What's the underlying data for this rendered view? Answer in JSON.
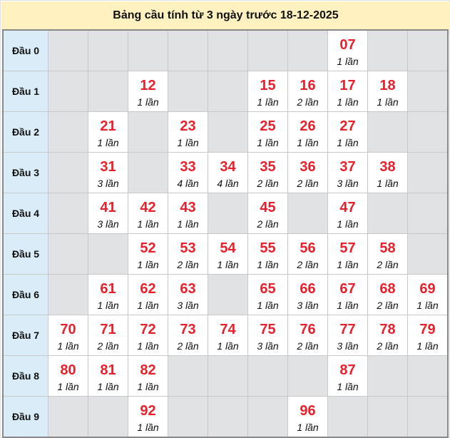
{
  "title": "Bảng cầu tính từ 3 ngày trước 18-12-2025",
  "count_suffix": "lần",
  "colors": {
    "number": "#e8202c",
    "header_bg": "#fff2c0",
    "row_label_bg": "#d9ecf7",
    "empty_cell": "#e1e2e4"
  },
  "rows": [
    {
      "label": "Đầu 0",
      "cells": [
        null,
        null,
        null,
        null,
        null,
        null,
        null,
        {
          "num": "07",
          "count": "1 lần"
        },
        null,
        null
      ]
    },
    {
      "label": "Đầu 1",
      "cells": [
        null,
        null,
        {
          "num": "12",
          "count": "1 lần"
        },
        null,
        null,
        {
          "num": "15",
          "count": "1 lần"
        },
        {
          "num": "16",
          "count": "2 lần"
        },
        {
          "num": "17",
          "count": "1 lần"
        },
        {
          "num": "18",
          "count": "1 lần"
        },
        null
      ]
    },
    {
      "label": "Đầu 2",
      "cells": [
        null,
        {
          "num": "21",
          "count": "1 lần"
        },
        null,
        {
          "num": "23",
          "count": "1 lần"
        },
        null,
        {
          "num": "25",
          "count": "1 lần"
        },
        {
          "num": "26",
          "count": "1 lần"
        },
        {
          "num": "27",
          "count": "1 lần"
        },
        null,
        null
      ]
    },
    {
      "label": "Đầu 3",
      "cells": [
        null,
        {
          "num": "31",
          "count": "3 lần"
        },
        null,
        {
          "num": "33",
          "count": "4 lần"
        },
        {
          "num": "34",
          "count": "4 lần"
        },
        {
          "num": "35",
          "count": "2 lần"
        },
        {
          "num": "36",
          "count": "2 lần"
        },
        {
          "num": "37",
          "count": "3 lần"
        },
        {
          "num": "38",
          "count": "1 lần"
        },
        null
      ]
    },
    {
      "label": "Đầu 4",
      "cells": [
        null,
        {
          "num": "41",
          "count": "3 lần"
        },
        {
          "num": "42",
          "count": "1 lần"
        },
        {
          "num": "43",
          "count": "1 lần"
        },
        null,
        {
          "num": "45",
          "count": "2 lần"
        },
        null,
        {
          "num": "47",
          "count": "1 lần"
        },
        null,
        null
      ]
    },
    {
      "label": "Đầu 5",
      "cells": [
        null,
        null,
        {
          "num": "52",
          "count": "1 lần"
        },
        {
          "num": "53",
          "count": "2 lần"
        },
        {
          "num": "54",
          "count": "1 lần"
        },
        {
          "num": "55",
          "count": "1 lần"
        },
        {
          "num": "56",
          "count": "2 lần"
        },
        {
          "num": "57",
          "count": "1 lần"
        },
        {
          "num": "58",
          "count": "2 lần"
        },
        null
      ]
    },
    {
      "label": "Đầu 6",
      "cells": [
        null,
        {
          "num": "61",
          "count": "1 lần"
        },
        {
          "num": "62",
          "count": "1 lần"
        },
        {
          "num": "63",
          "count": "3 lần"
        },
        null,
        {
          "num": "65",
          "count": "1 lần"
        },
        {
          "num": "66",
          "count": "3 lần"
        },
        {
          "num": "67",
          "count": "1 lần"
        },
        {
          "num": "68",
          "count": "2 lần"
        },
        {
          "num": "69",
          "count": "1 lần"
        }
      ]
    },
    {
      "label": "Đầu 7",
      "cells": [
        {
          "num": "70",
          "count": "1 lần"
        },
        {
          "num": "71",
          "count": "2 lần"
        },
        {
          "num": "72",
          "count": "1 lần"
        },
        {
          "num": "73",
          "count": "2 lần"
        },
        {
          "num": "74",
          "count": "1 lần"
        },
        {
          "num": "75",
          "count": "3 lần"
        },
        {
          "num": "76",
          "count": "2 lần"
        },
        {
          "num": "77",
          "count": "3 lần"
        },
        {
          "num": "78",
          "count": "2 lần"
        },
        {
          "num": "79",
          "count": "1 lần"
        }
      ]
    },
    {
      "label": "Đầu 8",
      "cells": [
        {
          "num": "80",
          "count": "1 lần"
        },
        {
          "num": "81",
          "count": "1 lần"
        },
        {
          "num": "82",
          "count": "1 lần"
        },
        null,
        null,
        null,
        null,
        {
          "num": "87",
          "count": "1 lần"
        },
        null,
        null
      ]
    },
    {
      "label": "Đầu 9",
      "cells": [
        null,
        null,
        {
          "num": "92",
          "count": "1 lần"
        },
        null,
        null,
        null,
        {
          "num": "96",
          "count": "1 lần"
        },
        null,
        null,
        null
      ]
    }
  ]
}
